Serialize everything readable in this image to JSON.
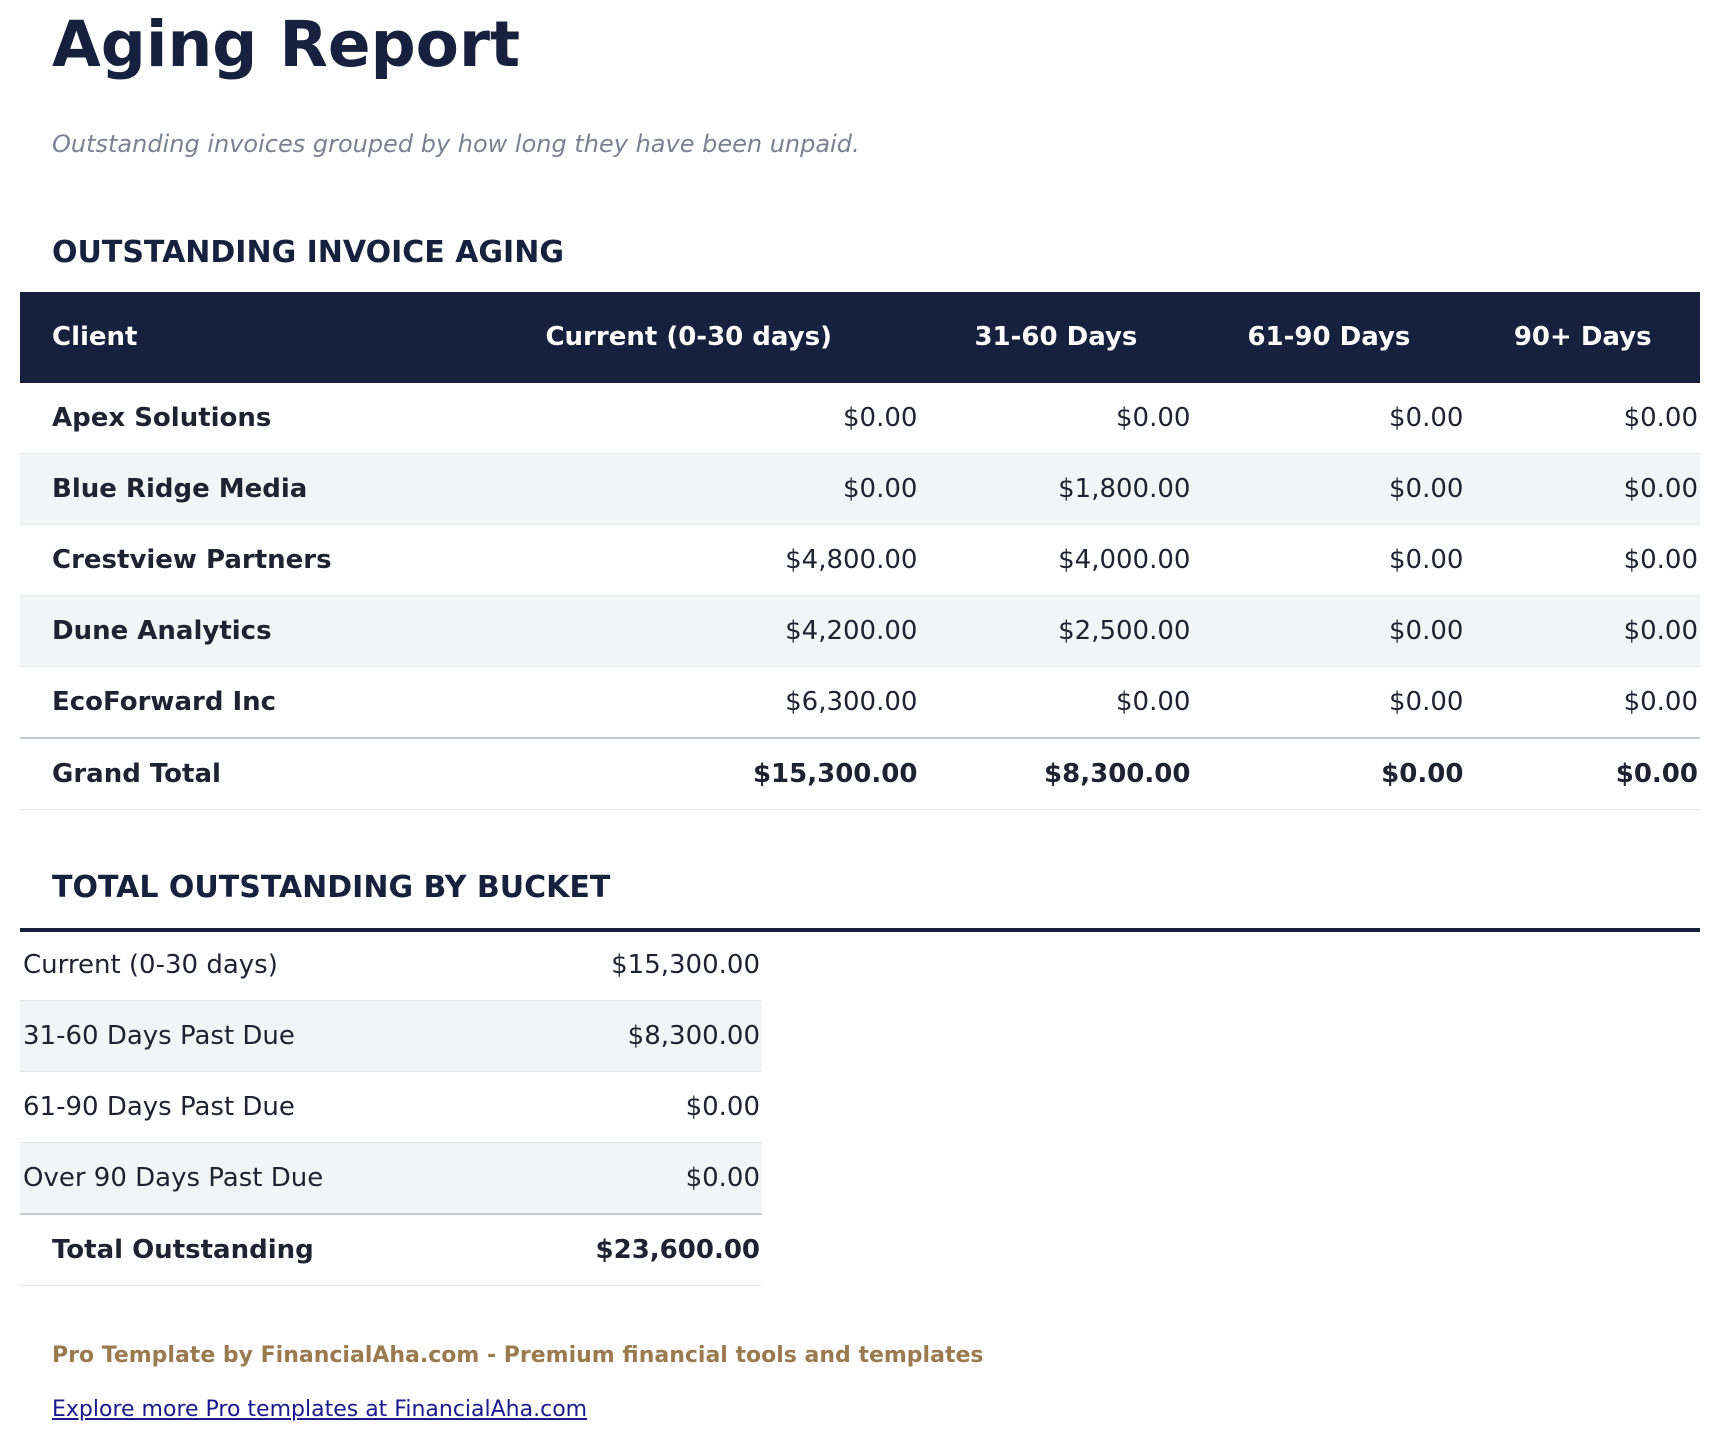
{
  "header": {
    "title": "Aging Report",
    "subtitle": "Outstanding invoices grouped by how long they have been unpaid."
  },
  "aging_table": {
    "heading": "OUTSTANDING INVOICE AGING",
    "columns": [
      "Client",
      "Current (0-30 days)",
      "31-60 Days",
      "61-90 Days",
      "90+ Days"
    ],
    "rows": [
      [
        "Apex Solutions",
        "$0.00",
        "$0.00",
        "$0.00",
        "$0.00"
      ],
      [
        "Blue Ridge Media",
        "$0.00",
        "$1,800.00",
        "$0.00",
        "$0.00"
      ],
      [
        "Crestview Partners",
        "$4,800.00",
        "$4,000.00",
        "$0.00",
        "$0.00"
      ],
      [
        "Dune Analytics",
        "$4,200.00",
        "$2,500.00",
        "$0.00",
        "$0.00"
      ],
      [
        "EcoForward Inc",
        "$6,300.00",
        "$0.00",
        "$0.00",
        "$0.00"
      ]
    ],
    "total": [
      "Grand Total",
      "$15,300.00",
      "$8,300.00",
      "$0.00",
      "$0.00"
    ]
  },
  "bucket_table": {
    "heading": "TOTAL OUTSTANDING BY BUCKET",
    "rows": [
      [
        "Current (0-30 days)",
        "$15,300.00"
      ],
      [
        "31-60 Days Past Due",
        "$8,300.00"
      ],
      [
        "61-90 Days Past Due",
        "$0.00"
      ],
      [
        "Over 90 Days Past Due",
        "$0.00"
      ]
    ],
    "total": [
      "Total Outstanding",
      "$23,600.00"
    ]
  },
  "footer": {
    "promo": "Pro Template by FinancialAha.com - Premium financial tools and templates",
    "link": "Explore more Pro templates at FinancialAha.com"
  }
}
